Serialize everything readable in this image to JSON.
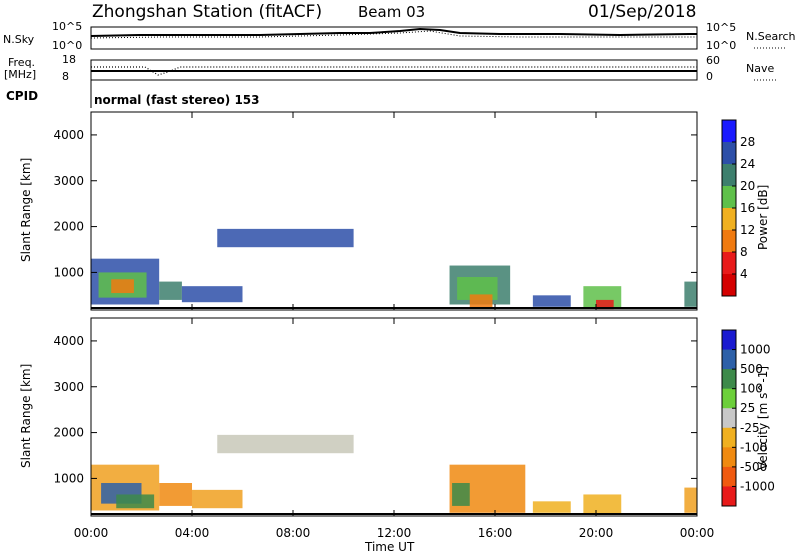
{
  "header": {
    "title": "Zhongshan Station (fitACF)",
    "beam": "Beam 03",
    "date": "01/Sep/2018"
  },
  "top_panels": {
    "nsky_label": "N.Sky",
    "nsky_ticks": [
      "10^5",
      "10^0"
    ],
    "nsearch_label": "N.Search",
    "nsearch_ticks": [
      "10^5",
      "10^0"
    ],
    "freq_label": "Freq.",
    "freq_unit": "[MHz]",
    "freq_ticks": [
      "18",
      "8"
    ],
    "nave_label": "Nave",
    "nave_ticks": [
      "60",
      "0"
    ],
    "cpid_label": "CPID",
    "cpid_text": "normal (fast stereo) 153"
  },
  "chart_data": [
    {
      "type": "heatmap",
      "name": "power",
      "ylabel": "Slant Range [km]",
      "yticks": [
        "1000",
        "2000",
        "3000",
        "4000"
      ],
      "ylim": [
        180,
        4500
      ],
      "xlim": [
        0,
        24
      ],
      "colorbar_label": "Power [dB]",
      "colorbar_ticks": [
        "4",
        "8",
        "12",
        "16",
        "20",
        "24",
        "28"
      ],
      "colorbar_colors": [
        "#1a1aff",
        "#2d4fa8",
        "#3d7f6d",
        "#5fc04a",
        "#f0b020",
        "#f07a10",
        "#e81a1a",
        "#d40000"
      ],
      "regions": [
        {
          "t0": 0.0,
          "t1": 2.7,
          "r0": 300,
          "r1": 1300,
          "color": "#2d4fa8"
        },
        {
          "t0": 0.3,
          "t1": 2.2,
          "r0": 450,
          "r1": 1000,
          "color": "#5fc04a"
        },
        {
          "t0": 0.8,
          "t1": 1.7,
          "r0": 550,
          "r1": 850,
          "color": "#f07a10"
        },
        {
          "t0": 2.7,
          "t1": 3.6,
          "r0": 400,
          "r1": 800,
          "color": "#3d7f6d"
        },
        {
          "t0": 3.6,
          "t1": 6.0,
          "r0": 350,
          "r1": 700,
          "color": "#2d4fa8"
        },
        {
          "t0": 5.0,
          "t1": 10.4,
          "r0": 1550,
          "r1": 1950,
          "color": "#2d4fa8"
        },
        {
          "t0": 14.2,
          "t1": 16.6,
          "r0": 300,
          "r1": 1150,
          "color": "#3d7f6d"
        },
        {
          "t0": 14.5,
          "t1": 16.1,
          "r0": 400,
          "r1": 900,
          "color": "#5fc04a"
        },
        {
          "t0": 15.0,
          "t1": 15.9,
          "r0": 230,
          "r1": 520,
          "color": "#f07a10"
        },
        {
          "t0": 17.5,
          "t1": 19.0,
          "r0": 250,
          "r1": 500,
          "color": "#2d4fa8"
        },
        {
          "t0": 19.5,
          "t1": 21.0,
          "r0": 230,
          "r1": 700,
          "color": "#5fc04a"
        },
        {
          "t0": 20.0,
          "t1": 20.7,
          "r0": 200,
          "r1": 400,
          "color": "#e81a1a"
        },
        {
          "t0": 23.5,
          "t1": 24.0,
          "r0": 250,
          "r1": 800,
          "color": "#3d7f6d"
        }
      ]
    },
    {
      "type": "heatmap",
      "name": "velocity",
      "ylabel": "Slant Range [km]",
      "yticks": [
        "1000",
        "2000",
        "3000",
        "4000"
      ],
      "ylim": [
        180,
        4500
      ],
      "xlim": [
        0,
        24
      ],
      "xticks": [
        "00:00",
        "04:00",
        "08:00",
        "12:00",
        "16:00",
        "20:00",
        "00:00"
      ],
      "xlabel": "Time UT",
      "colorbar_label": "Velocity [m s^-1]",
      "colorbar_ticks": [
        "1000",
        "500",
        "100",
        "25",
        "-25",
        "-100",
        "-500",
        "-1000"
      ],
      "colorbar_colors": [
        "#1a1ad0",
        "#2d60a8",
        "#3d8a4a",
        "#6ccf3a",
        "#c8c8c8",
        "#f0b020",
        "#f08a10",
        "#f05a10",
        "#e81a1a"
      ],
      "regions": [
        {
          "t0": 0.0,
          "t1": 2.7,
          "r0": 300,
          "r1": 1300,
          "color": "#f0a020"
        },
        {
          "t0": 0.4,
          "t1": 2.0,
          "r0": 450,
          "r1": 900,
          "color": "#2d60a8"
        },
        {
          "t0": 1.0,
          "t1": 2.5,
          "r0": 350,
          "r1": 650,
          "color": "#3d8a4a"
        },
        {
          "t0": 2.7,
          "t1": 4.0,
          "r0": 400,
          "r1": 900,
          "color": "#f08a10"
        },
        {
          "t0": 4.0,
          "t1": 6.0,
          "r0": 350,
          "r1": 750,
          "color": "#f0a020"
        },
        {
          "t0": 5.0,
          "t1": 10.4,
          "r0": 1550,
          "r1": 1950,
          "color": "#c8c8b8"
        },
        {
          "t0": 14.2,
          "t1": 17.2,
          "r0": 250,
          "r1": 1300,
          "color": "#f08a10"
        },
        {
          "t0": 14.3,
          "t1": 15.0,
          "r0": 400,
          "r1": 900,
          "color": "#3d8a4a"
        },
        {
          "t0": 17.5,
          "t1": 19.0,
          "r0": 250,
          "r1": 500,
          "color": "#f0b020"
        },
        {
          "t0": 19.5,
          "t1": 21.0,
          "r0": 230,
          "r1": 650,
          "color": "#f0b020"
        },
        {
          "t0": 23.5,
          "t1": 24.0,
          "r0": 250,
          "r1": 800,
          "color": "#f0a020"
        }
      ]
    }
  ]
}
